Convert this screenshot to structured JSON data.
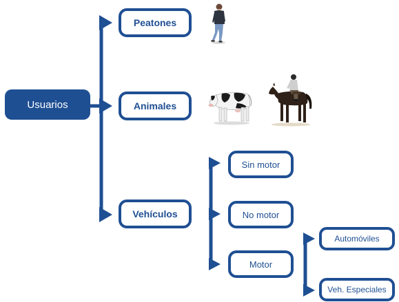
{
  "diagram": {
    "root": {
      "label": "Usuarios"
    },
    "level1": [
      {
        "label": "Peatones"
      },
      {
        "label": "Animales"
      },
      {
        "label": "Vehículos"
      }
    ],
    "vehicle_types": [
      {
        "label": "Sin motor"
      },
      {
        "label": "No motor"
      },
      {
        "label": "Motor"
      }
    ],
    "motor_types": [
      {
        "label": "Automóviles"
      },
      {
        "label": "Veh. Especiales"
      }
    ],
    "images": [
      {
        "icon": "pedestrian-icon"
      },
      {
        "icon": "cow-icon"
      },
      {
        "icon": "horse-rider-icon"
      }
    ],
    "colors": {
      "primary": "#1f4f93",
      "background": "#ffffff"
    }
  }
}
